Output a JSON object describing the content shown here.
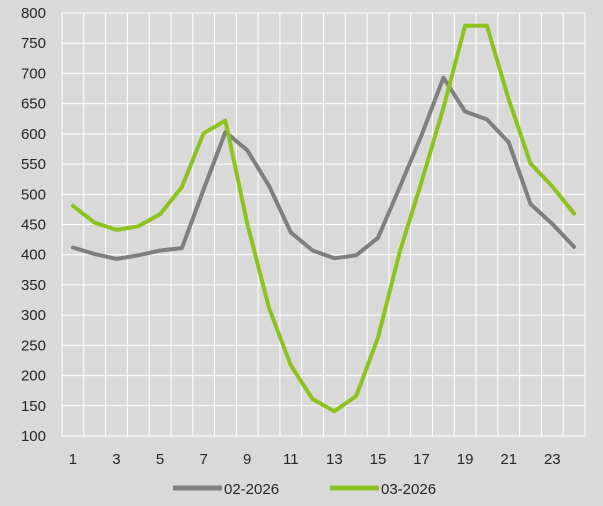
{
  "chart_data": {
    "type": "line",
    "x": [
      1,
      2,
      3,
      4,
      5,
      6,
      7,
      8,
      9,
      10,
      11,
      12,
      13,
      14,
      15,
      16,
      17,
      18,
      19,
      20,
      21,
      22,
      23,
      24
    ],
    "x_tick_labels": [
      "1",
      "3",
      "5",
      "7",
      "9",
      "11",
      "13",
      "15",
      "17",
      "19",
      "21",
      "23"
    ],
    "ylim": [
      100,
      800
    ],
    "y_ticks": [
      100,
      150,
      200,
      250,
      300,
      350,
      400,
      450,
      500,
      550,
      600,
      650,
      700,
      750,
      800
    ],
    "grid": true,
    "legend_position": "bottom",
    "series": [
      {
        "name": "02-2026",
        "color": "#7f7f7f",
        "values": [
          412,
          401,
          393,
          399,
          407,
          411,
          508,
          603,
          573,
          514,
          437,
          407,
          394,
          399,
          428,
          512,
          598,
          693,
          637,
          624,
          586,
          484,
          451,
          413
        ]
      },
      {
        "name": "03-2026",
        "color": "#8dc21f",
        "values": [
          481,
          453,
          441,
          447,
          467,
          512,
          601,
          622,
          452,
          312,
          217,
          161,
          141,
          166,
          263,
          405,
          521,
          643,
          779,
          779,
          657,
          551,
          513,
          468
        ]
      }
    ]
  }
}
